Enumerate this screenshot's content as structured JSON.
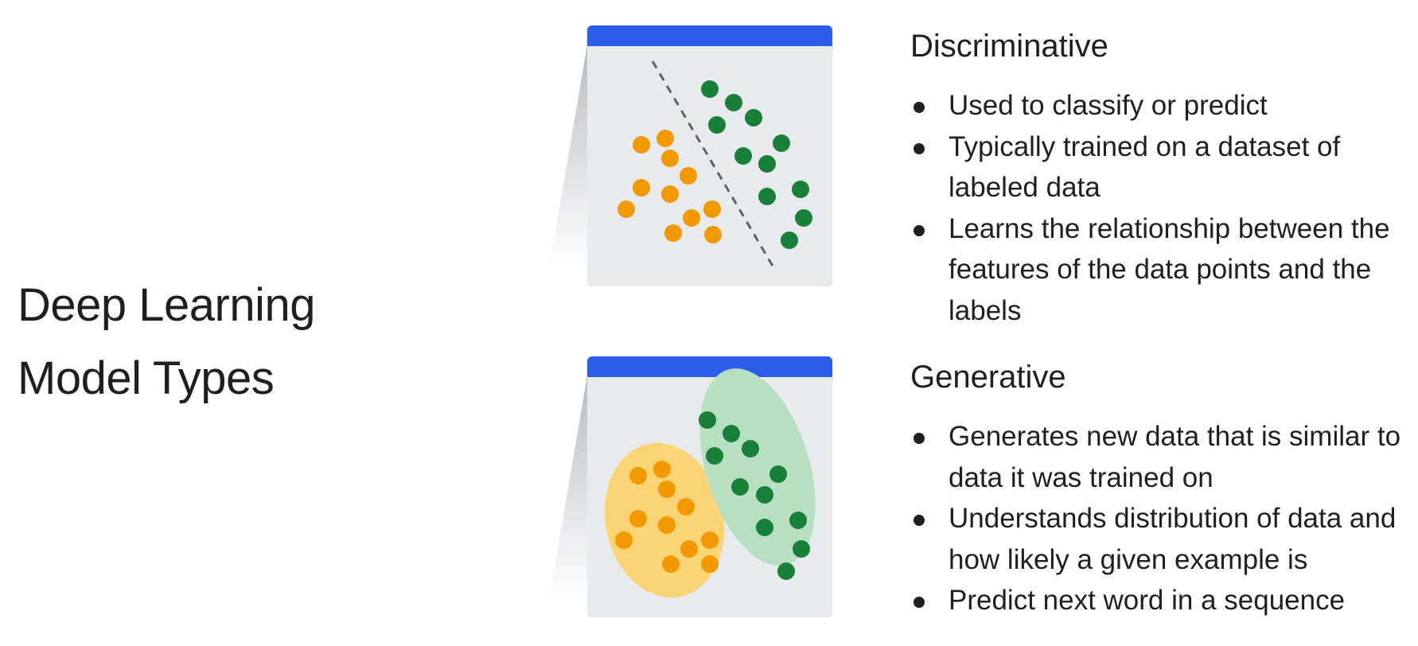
{
  "title": {
    "line1": "Deep Learning",
    "line2": "Model Types"
  },
  "discriminative": {
    "heading": "Discriminative",
    "bullets": [
      "Used to classify or predict",
      "Typically trained on a dataset of labeled data",
      "Learns the relationship between the features of the data points and the labels"
    ]
  },
  "generative": {
    "heading": "Generative",
    "bullets": [
      "Generates new data that is similar to data it was trained on",
      "Understands distribution of data and how likely a given example is",
      "Predict next word in a sequence"
    ]
  },
  "colors": {
    "header_bar": "#2a5ee8",
    "card_bg": "#e8eaed",
    "class_a_points": "#f29900",
    "class_b_points": "#188038",
    "class_a_region": "#fbd575",
    "class_b_region": "#b7dfc1",
    "boundary": "#5f6368"
  }
}
